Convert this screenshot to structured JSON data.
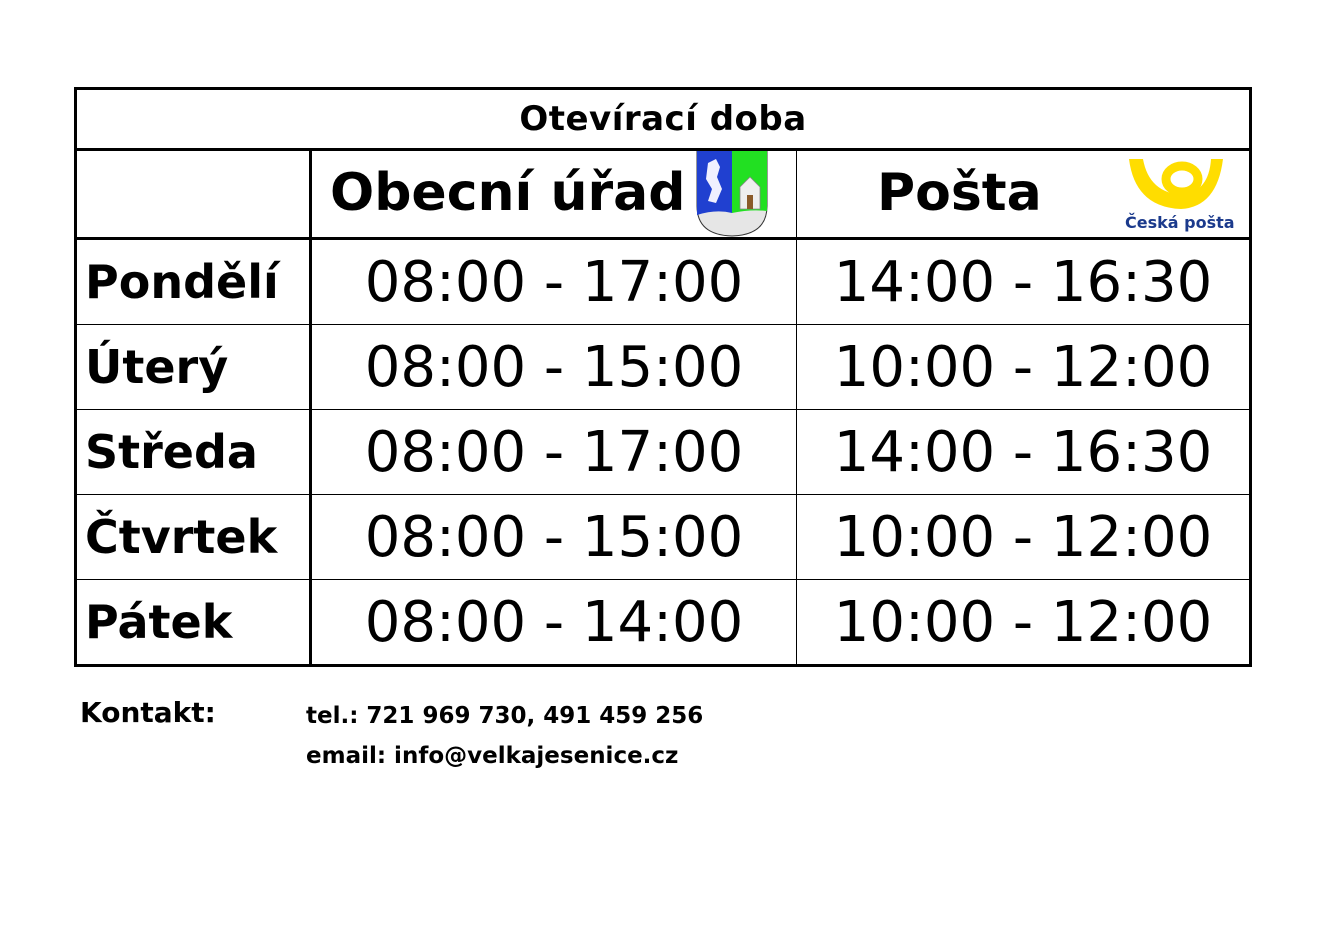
{
  "title": "Otevírací doba",
  "columns": {
    "office": "Obecní úřad",
    "post": "Pošta",
    "post_logo_text": "Česká pošta"
  },
  "rows": [
    {
      "day": "Pondělí",
      "office": "08:00 - 17:00",
      "post": "14:00 - 16:30"
    },
    {
      "day": "Úterý",
      "office": "08:00 - 15:00",
      "post": "10:00 - 12:00"
    },
    {
      "day": "Středa",
      "office": "08:00 - 17:00",
      "post": "14:00 - 16:30"
    },
    {
      "day": "Čtvrtek",
      "office": "08:00 - 15:00",
      "post": "10:00 - 12:00"
    },
    {
      "day": "Pátek",
      "office": "08:00 - 14:00",
      "post": "10:00 - 12:00"
    }
  ],
  "contact": {
    "label": "Kontakt:",
    "phone": "tel.: 721 969 730, 491 459 256",
    "email": "email: info@velkajesenice.cz"
  },
  "colors": {
    "post_yellow": "#ffdd00",
    "post_blue": "#1b3a8c",
    "coat_blue": "#2040d0",
    "coat_green": "#22e022"
  }
}
